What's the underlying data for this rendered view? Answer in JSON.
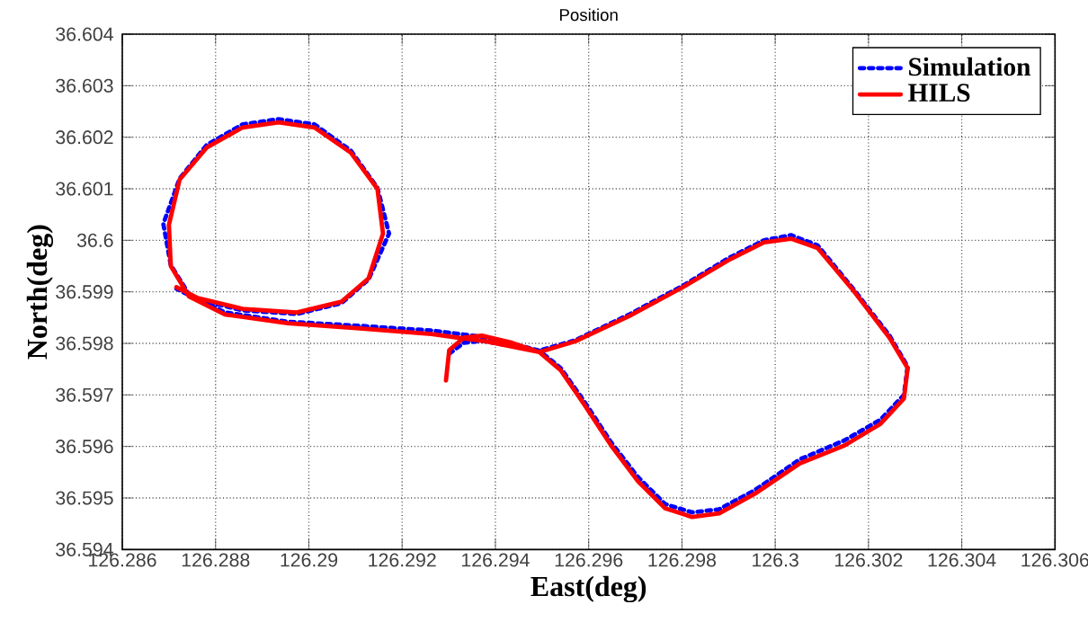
{
  "chart_data": {
    "type": "line",
    "title": "Position",
    "xlabel": "East(deg)",
    "ylabel": "North(deg)",
    "xlim": [
      126.286,
      126.306
    ],
    "ylim": [
      36.594,
      36.604
    ],
    "xticks": [
      126.286,
      126.288,
      126.29,
      126.292,
      126.294,
      126.296,
      126.298,
      126.3,
      126.302,
      126.304,
      126.306
    ],
    "yticks": [
      36.594,
      36.595,
      36.596,
      36.597,
      36.598,
      36.599,
      36.6,
      36.601,
      36.602,
      36.603,
      36.604
    ],
    "grid": true,
    "legend": "top right",
    "marker": "none",
    "series": [
      {
        "name": "Simulation",
        "color": "#0000ff",
        "line_style": "dotted",
        "x": [
          126.29301,
          126.29332,
          126.29371,
          126.29436,
          126.29494,
          126.2954,
          126.2959,
          126.29648,
          126.29706,
          126.29764,
          126.29822,
          126.2988,
          126.29956,
          126.30053,
          126.30149,
          126.30226,
          126.30276,
          126.30284,
          126.30245,
          126.30168,
          126.30091,
          126.30034,
          126.29976,
          126.29899,
          126.29802,
          126.29687,
          126.29571,
          126.29494,
          126.29378,
          126.29263,
          126.29109,
          126.28955,
          126.2882,
          126.28743,
          126.28704,
          126.28688,
          126.28723,
          126.28781,
          126.28858,
          126.28935,
          126.29012,
          126.2909,
          126.29147,
          126.29172,
          126.29128,
          126.2907,
          126.28974,
          126.28858,
          126.28762,
          126.28716
        ],
        "values": [
          36.5978,
          36.59801,
          36.59805,
          36.59795,
          36.59786,
          36.59752,
          36.59688,
          36.59608,
          36.5954,
          36.59488,
          36.59472,
          36.59478,
          36.59515,
          36.59575,
          36.59612,
          36.59652,
          36.597,
          36.59755,
          36.59815,
          36.59905,
          36.5999,
          36.6001,
          36.6,
          36.59965,
          36.59912,
          36.59856,
          36.59806,
          36.59786,
          36.59812,
          36.59825,
          36.59834,
          36.59842,
          36.5986,
          36.59895,
          36.59952,
          36.60032,
          36.6012,
          36.60185,
          36.60225,
          36.60235,
          36.60225,
          36.60174,
          36.60102,
          36.60013,
          36.59924,
          36.59878,
          36.59857,
          36.59864,
          36.59885,
          36.59906
        ]
      },
      {
        "name": "HILS",
        "color": "#ff0000",
        "line_style": "solid",
        "x": [
          126.29294,
          126.29301,
          126.29332,
          126.29371,
          126.29436,
          126.29494,
          126.2954,
          126.2959,
          126.29648,
          126.29706,
          126.29764,
          126.29822,
          126.2988,
          126.29956,
          126.30053,
          126.30149,
          126.30226,
          126.30276,
          126.30284,
          126.30245,
          126.30168,
          126.30091,
          126.30034,
          126.29976,
          126.29899,
          126.29802,
          126.29687,
          126.29571,
          126.29494,
          126.29378,
          126.29263,
          126.29109,
          126.28955,
          126.2882,
          126.28743,
          126.28704,
          126.287,
          126.28723,
          126.28781,
          126.28858,
          126.28935,
          126.29012,
          126.2909,
          126.29147,
          126.29159,
          126.29128,
          126.2907,
          126.28974,
          126.28858,
          126.28762,
          126.28716
        ],
        "values": [
          36.59728,
          36.59787,
          36.59811,
          36.59815,
          36.59801,
          36.59783,
          36.59748,
          36.59682,
          36.59602,
          36.59532,
          36.5948,
          36.59463,
          36.5947,
          36.59508,
          36.59567,
          36.59602,
          36.59644,
          36.59693,
          36.59752,
          36.59811,
          36.59902,
          36.59985,
          36.60003,
          36.59996,
          36.59961,
          36.59909,
          36.59853,
          36.59804,
          36.59783,
          36.59804,
          36.59818,
          36.59829,
          36.59839,
          36.59856,
          36.59891,
          36.5995,
          36.6003,
          36.60118,
          36.6018,
          36.60219,
          36.60229,
          36.60219,
          36.6017,
          36.601,
          36.60013,
          36.59926,
          36.59881,
          36.5986,
          36.59867,
          36.59888,
          36.59909
        ]
      }
    ]
  }
}
